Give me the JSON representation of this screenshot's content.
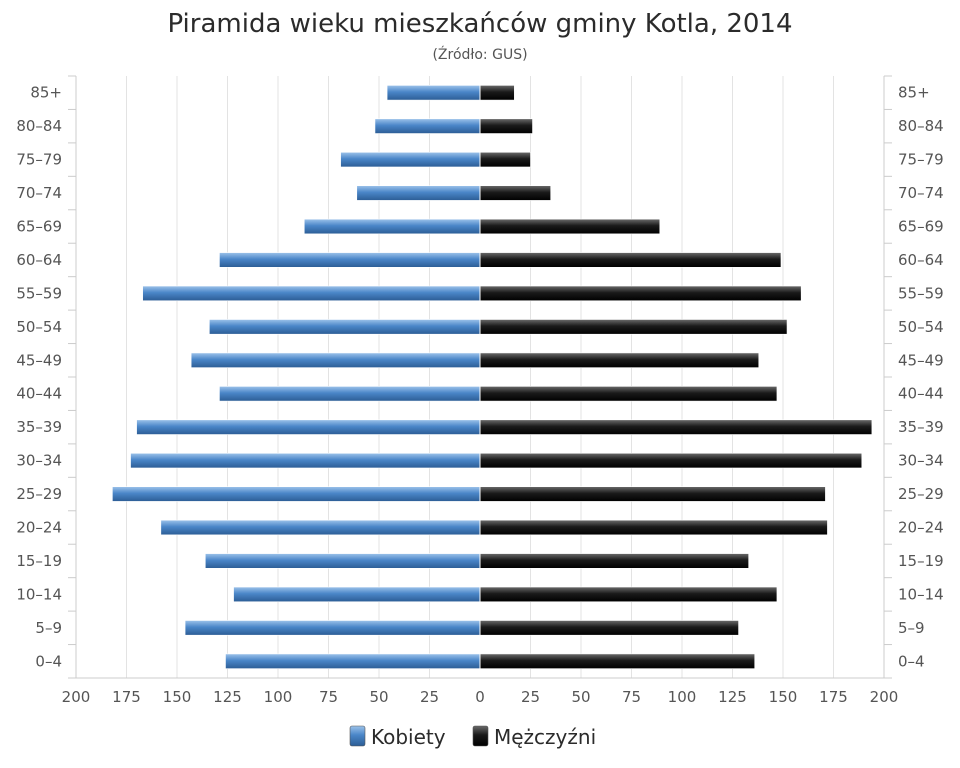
{
  "chart_data": {
    "type": "bar",
    "orientation": "horizontal",
    "title": "Piramida wieku mieszkańców gminy Kotla, 2014",
    "subtitle": "(Źródło: GUS)",
    "categories": [
      "85+",
      "80–84",
      "75–79",
      "70–74",
      "65–69",
      "60–64",
      "55–59",
      "50–54",
      "45–49",
      "40–44",
      "35–39",
      "30–34",
      "25–29",
      "20–24",
      "15–19",
      "10–14",
      "5–9",
      "0–4"
    ],
    "series": [
      {
        "name": "Kobiety",
        "side": "left",
        "color": "#4a86c8",
        "values": [
          46,
          52,
          69,
          61,
          87,
          129,
          167,
          134,
          143,
          129,
          170,
          173,
          182,
          158,
          136,
          122,
          146,
          126
        ]
      },
      {
        "name": "Mężczyźni",
        "side": "right",
        "color": "#1a1a1a",
        "values": [
          17,
          26,
          25,
          35,
          89,
          149,
          159,
          152,
          138,
          147,
          194,
          189,
          171,
          172,
          133,
          147,
          128,
          136
        ]
      }
    ],
    "xlim": [
      -200,
      200
    ],
    "x_ticks": [
      "200",
      "175",
      "150",
      "125",
      "100",
      "75",
      "50",
      "25",
      "0",
      "25",
      "50",
      "75",
      "100",
      "125",
      "150",
      "175",
      "200"
    ],
    "grid": true,
    "legend_position": "bottom-center"
  }
}
